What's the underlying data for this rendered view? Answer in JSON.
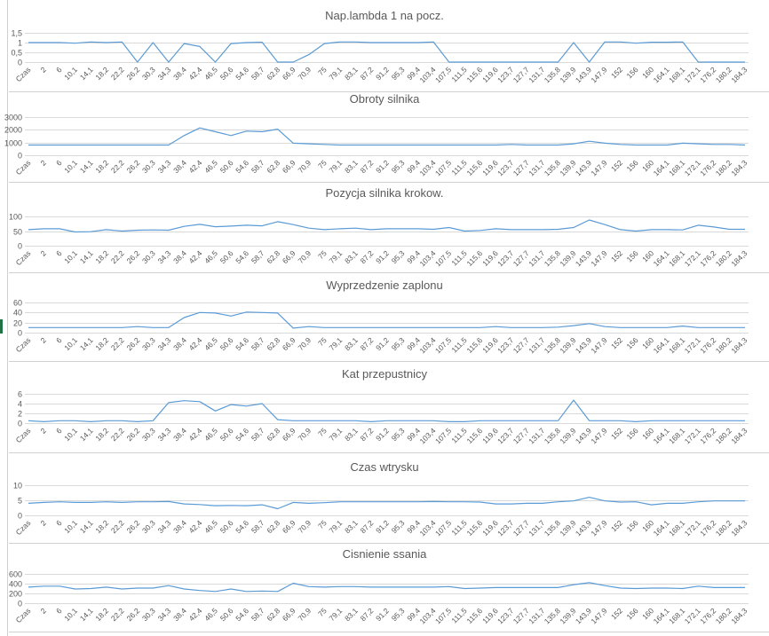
{
  "colors": {
    "series": "#5b9bd5",
    "grid": "#d9d9d9",
    "text": "#595959",
    "border": "#d0d0d0",
    "selection": "#217346"
  },
  "chart_data": [
    {
      "type": "line",
      "title": "Nap.lambda 1 na pocz.",
      "categories": [
        "Czas",
        "2",
        "6",
        "10,1",
        "14,1",
        "18,2",
        "22,2",
        "26,2",
        "30,3",
        "34,3",
        "38,4",
        "42,4",
        "46,5",
        "50,6",
        "54,6",
        "58,7",
        "62,8",
        "66,9",
        "70,9",
        "75",
        "79,1",
        "83,1",
        "87,2",
        "91,2",
        "95,3",
        "99,4",
        "103,4",
        "107,5",
        "111,5",
        "115,6",
        "119,6",
        "123,7",
        "127,7",
        "131,7",
        "135,8",
        "139,9",
        "143,9",
        "147,9",
        "152",
        "156",
        "160",
        "164,1",
        "168,1",
        "172,1",
        "176,2",
        "180,2",
        "184,3"
      ],
      "ylim": [
        0,
        1.5
      ],
      "yticks": [
        0,
        0.5,
        1,
        1.5
      ],
      "ytick_labels": [
        "0",
        "0,5",
        "1",
        "1,5"
      ],
      "grid": true,
      "values": [
        1,
        1,
        1,
        0.97,
        1.03,
        1,
        1.03,
        0,
        1,
        0,
        0.95,
        0.8,
        0,
        0.95,
        1,
        1.02,
        0,
        0,
        0.38,
        0.95,
        1.03,
        1.03,
        1,
        1,
        1,
        1,
        1.03,
        0,
        0,
        0,
        0,
        0,
        0,
        0,
        0,
        1,
        0,
        1.03,
        1.03,
        0.97,
        1.02,
        1.02,
        1.03,
        0,
        0,
        0,
        0
      ]
    },
    {
      "type": "line",
      "title": "Obroty silnika",
      "categories": [
        "Czas",
        "2",
        "6",
        "10,1",
        "14,1",
        "18,2",
        "22,2",
        "26,2",
        "30,3",
        "34,3",
        "38,4",
        "42,4",
        "46,5",
        "50,6",
        "54,6",
        "58,7",
        "62,8",
        "66,9",
        "70,9",
        "75",
        "79,1",
        "83,1",
        "87,2",
        "91,2",
        "95,3",
        "99,4",
        "103,4",
        "107,5",
        "111,5",
        "115,6",
        "119,6",
        "123,7",
        "127,7",
        "131,7",
        "135,8",
        "139,9",
        "143,9",
        "147,9",
        "152",
        "156",
        "160",
        "164,1",
        "168,1",
        "172,1",
        "176,2",
        "180,2",
        "184,3"
      ],
      "ylim": [
        0,
        3000
      ],
      "yticks": [
        0,
        1000,
        2000,
        3000
      ],
      "ytick_labels": [
        "0",
        "1000",
        "2000",
        "3000"
      ],
      "grid": true,
      "values": [
        800,
        800,
        800,
        800,
        800,
        800,
        800,
        800,
        800,
        800,
        1550,
        2150,
        1850,
        1550,
        1900,
        1850,
        2050,
        950,
        900,
        850,
        800,
        800,
        800,
        800,
        800,
        800,
        800,
        800,
        800,
        800,
        800,
        850,
        800,
        800,
        800,
        900,
        1100,
        950,
        850,
        800,
        800,
        800,
        950,
        900,
        850,
        850,
        800
      ]
    },
    {
      "type": "line",
      "title": "Pozycja silnika krokow.",
      "categories": [
        "Czas",
        "2",
        "6",
        "10,1",
        "14,1",
        "18,2",
        "22,2",
        "26,2",
        "30,3",
        "34,3",
        "38,4",
        "42,4",
        "46,5",
        "50,6",
        "54,6",
        "58,7",
        "62,8",
        "66,9",
        "70,9",
        "75",
        "79,1",
        "83,1",
        "87,2",
        "91,2",
        "95,3",
        "99,4",
        "103,4",
        "107,5",
        "111,5",
        "115,6",
        "119,6",
        "123,7",
        "127,7",
        "131,7",
        "135,8",
        "139,9",
        "143,9",
        "147,9",
        "152",
        "156",
        "160",
        "164,1",
        "168,1",
        "172,1",
        "176,2",
        "180,2",
        "184,3"
      ],
      "ylim": [
        0,
        100
      ],
      "yticks": [
        0,
        50,
        100
      ],
      "ytick_labels": [
        "0",
        "50",
        "100"
      ],
      "grid": true,
      "values": [
        55,
        58,
        58,
        47,
        48,
        55,
        50,
        53,
        54,
        53,
        66,
        73,
        65,
        67,
        70,
        68,
        82,
        72,
        60,
        55,
        58,
        60,
        55,
        58,
        58,
        58,
        56,
        62,
        50,
        52,
        58,
        55,
        55,
        55,
        56,
        62,
        88,
        72,
        55,
        50,
        55,
        55,
        54,
        70,
        64,
        56,
        56
      ]
    },
    {
      "type": "line",
      "title": "Wyprzedzenie zaplonu",
      "categories": [
        "Czas",
        "2",
        "6",
        "10,1",
        "14,1",
        "18,2",
        "22,2",
        "26,2",
        "30,3",
        "34,3",
        "38,4",
        "42,4",
        "46,5",
        "50,6",
        "54,6",
        "58,7",
        "62,8",
        "66,9",
        "70,9",
        "75",
        "79,1",
        "83,1",
        "87,2",
        "91,2",
        "95,3",
        "99,4",
        "103,4",
        "107,5",
        "111,5",
        "115,6",
        "119,6",
        "123,7",
        "127,7",
        "131,7",
        "135,8",
        "139,9",
        "143,9",
        "147,9",
        "152",
        "156",
        "160",
        "164,1",
        "168,1",
        "172,1",
        "176,2",
        "180,2",
        "184,3"
      ],
      "ylim": [
        0,
        60
      ],
      "yticks": [
        0,
        20,
        40,
        60
      ],
      "ytick_labels": [
        "0",
        "20",
        "40",
        "60"
      ],
      "grid": true,
      "values": [
        10,
        10,
        10,
        10,
        10,
        10,
        10,
        12,
        10,
        10,
        30,
        40,
        39,
        33,
        41,
        40,
        39,
        9,
        12,
        10,
        10,
        10,
        10,
        10,
        10,
        10,
        10,
        10,
        10,
        10,
        12,
        10,
        10,
        10,
        11,
        14,
        18,
        12,
        10,
        10,
        10,
        10,
        13,
        10,
        10,
        10,
        10
      ]
    },
    {
      "type": "line",
      "title": "Kat przepustnicy",
      "categories": [
        "Czas",
        "2",
        "6",
        "10,1",
        "14,1",
        "18,2",
        "22,2",
        "26,2",
        "30,3",
        "34,3",
        "38,4",
        "42,4",
        "46,5",
        "50,6",
        "54,6",
        "58,7",
        "62,8",
        "66,9",
        "70,9",
        "75",
        "79,1",
        "83,1",
        "87,2",
        "91,2",
        "95,3",
        "99,4",
        "103,4",
        "107,5",
        "111,5",
        "115,6",
        "119,6",
        "123,7",
        "127,7",
        "131,7",
        "135,8",
        "139,9",
        "143,9",
        "147,9",
        "152",
        "156",
        "160",
        "164,1",
        "168,1",
        "172,1",
        "176,2",
        "180,2",
        "184,3"
      ],
      "ylim": [
        0,
        6
      ],
      "yticks": [
        0,
        2,
        4,
        6
      ],
      "ytick_labels": [
        "0",
        "2",
        "4",
        "6"
      ],
      "grid": true,
      "values": [
        0.5,
        0.3,
        0.5,
        0.5,
        0.3,
        0.5,
        0.5,
        0.3,
        0.5,
        4.2,
        4.6,
        4.4,
        2.5,
        3.8,
        3.5,
        4,
        0.7,
        0.5,
        0.5,
        0.5,
        0.5,
        0.5,
        0.3,
        0.5,
        0.5,
        0.5,
        0.5,
        0.3,
        0.3,
        0.5,
        0.5,
        0.5,
        0.5,
        0.5,
        0.5,
        4.7,
        0.5,
        0.5,
        0.5,
        0.3,
        0.5,
        0.5,
        0.5,
        0.5,
        0.5,
        0.5,
        0.5
      ]
    },
    {
      "type": "line",
      "title": "Czas wtrysku",
      "categories": [
        "Czas",
        "2",
        "6",
        "10,1",
        "14,1",
        "18,2",
        "22,2",
        "26,2",
        "30,3",
        "34,3",
        "38,4",
        "42,4",
        "46,5",
        "50,6",
        "54,6",
        "58,7",
        "62,8",
        "66,9",
        "70,9",
        "75",
        "79,1",
        "83,1",
        "87,2",
        "91,2",
        "95,3",
        "99,4",
        "103,4",
        "107,5",
        "111,5",
        "115,6",
        "119,6",
        "123,7",
        "127,7",
        "131,7",
        "135,8",
        "139,9",
        "143,9",
        "147,9",
        "152",
        "156",
        "160",
        "164,1",
        "168,1",
        "172,1",
        "176,2",
        "180,2",
        "184,3"
      ],
      "ylim": [
        0,
        10
      ],
      "yticks": [
        0,
        5,
        10
      ],
      "ytick_labels": [
        "0",
        "5",
        "10"
      ],
      "grid": true,
      "values": [
        4,
        4.3,
        4.5,
        4.3,
        4.3,
        4.5,
        4.3,
        4.5,
        4.5,
        4.6,
        3.8,
        3.6,
        3.2,
        3.3,
        3.2,
        3.5,
        2.2,
        4.3,
        4,
        4.2,
        4.5,
        4.5,
        4.5,
        4.5,
        4.5,
        4.5,
        4.6,
        4.5,
        4.5,
        4.4,
        3.8,
        3.8,
        4,
        4,
        4.5,
        4.8,
        6,
        4.8,
        4.4,
        4.5,
        3.5,
        4,
        4,
        4.5,
        4.8,
        4.8,
        4.8
      ]
    },
    {
      "type": "line",
      "title": "Cisnienie ssania",
      "categories": [
        "Czas",
        "2",
        "6",
        "10,1",
        "14,1",
        "18,2",
        "22,2",
        "26,2",
        "30,3",
        "34,3",
        "38,4",
        "42,4",
        "46,5",
        "50,6",
        "54,6",
        "58,7",
        "62,8",
        "66,9",
        "70,9",
        "75",
        "79,1",
        "83,1",
        "87,2",
        "91,2",
        "95,3",
        "99,4",
        "103,4",
        "107,5",
        "111,5",
        "115,6",
        "119,6",
        "123,7",
        "127,7",
        "131,7",
        "135,8",
        "139,9",
        "143,9",
        "147,9",
        "152",
        "156",
        "160",
        "164,1",
        "168,1",
        "172,1",
        "176,2",
        "180,2",
        "184,3"
      ],
      "ylim": [
        0,
        600
      ],
      "yticks": [
        0,
        200,
        400,
        600
      ],
      "ytick_labels": [
        "0",
        "200",
        "400",
        "600"
      ],
      "grid": true,
      "values": [
        330,
        350,
        350,
        290,
        300,
        330,
        290,
        310,
        310,
        360,
        290,
        260,
        240,
        290,
        240,
        250,
        240,
        410,
        340,
        330,
        340,
        340,
        330,
        330,
        330,
        330,
        330,
        340,
        300,
        310,
        320,
        320,
        320,
        320,
        320,
        380,
        420,
        360,
        310,
        300,
        310,
        310,
        300,
        350,
        320,
        320,
        320
      ]
    }
  ]
}
